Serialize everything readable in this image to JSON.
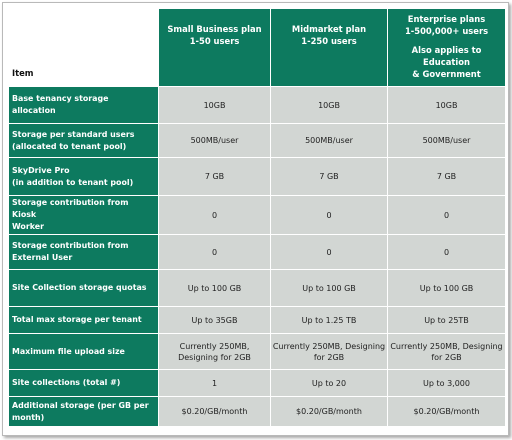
{
  "header": {
    "item": "Item",
    "plans": [
      {
        "lines": [
          "Small Business plan",
          "1-50 users"
        ]
      },
      {
        "lines": [
          "Midmarket plan",
          "1-250 users"
        ]
      },
      {
        "lines": [
          "Enterprise plans",
          "1-500,000+ users",
          "",
          "Also applies to Education",
          "& Government"
        ]
      }
    ]
  },
  "rows": [
    {
      "label": [
        "Base tenancy storage",
        "allocation"
      ],
      "values": [
        [
          "10GB"
        ],
        [
          "10GB"
        ],
        [
          "10GB"
        ]
      ]
    },
    {
      "label": [
        "Storage per standard users",
        "(allocated to tenant pool)"
      ],
      "values": [
        [
          "500MB/user"
        ],
        [
          "500MB/user"
        ],
        [
          "500MB/user"
        ]
      ]
    },
    {
      "label": [
        "SkyDrive Pro",
        "(in addition to tenant pool)"
      ],
      "values": [
        [
          "7 GB"
        ],
        [
          "7 GB"
        ],
        [
          "7 GB"
        ]
      ]
    },
    {
      "label": [
        "Storage contribution from Kiosk",
        "Worker"
      ],
      "values": [
        [
          "0"
        ],
        [
          "0"
        ],
        [
          "0"
        ]
      ]
    },
    {
      "label": [
        "Storage contribution from",
        "External User"
      ],
      "values": [
        [
          "0"
        ],
        [
          "0"
        ],
        [
          "0"
        ]
      ]
    },
    {
      "label": [
        "Site Collection storage quotas"
      ],
      "values": [
        [
          "Up to 100 GB"
        ],
        [
          "Up to 100 GB"
        ],
        [
          "Up to 100 GB"
        ]
      ]
    },
    {
      "label": [
        "Total max storage per tenant"
      ],
      "values": [
        [
          "Up to 35GB"
        ],
        [
          "Up to 1.25 TB"
        ],
        [
          "Up to 25TB"
        ]
      ]
    },
    {
      "label": [
        "Maximum file upload size"
      ],
      "values": [
        [
          "Currently 250MB,",
          "Designing for 2GB"
        ],
        [
          "Currently 250MB, Designing",
          "for 2GB"
        ],
        [
          "Currently 250MB, Designing",
          "for 2GB"
        ]
      ]
    },
    {
      "label": [
        "Site collections (total #)"
      ],
      "values": [
        [
          "1"
        ],
        [
          "Up to 20"
        ],
        [
          "Up to 3,000"
        ]
      ]
    },
    {
      "label": [
        "Additional storage (per GB per",
        "month)"
      ],
      "values": [
        [
          "$0.20/GB/month"
        ],
        [
          "$0.20/GB/month"
        ],
        [
          "$0.20/GB/month"
        ]
      ]
    }
  ]
}
